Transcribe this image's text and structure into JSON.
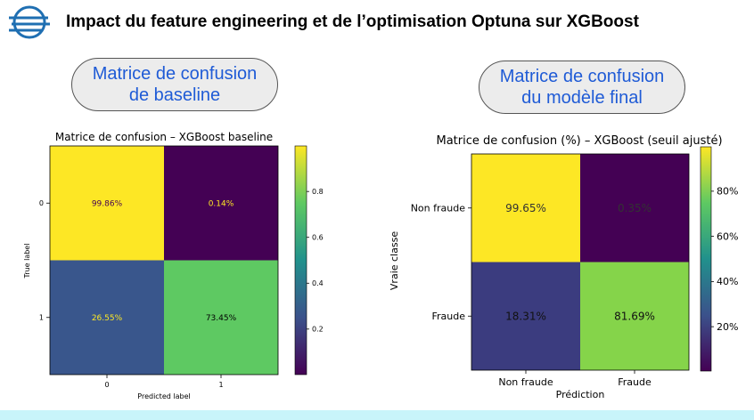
{
  "header": {
    "title": "Impact du feature engineering et de l’optimisation Optuna sur XGBoost"
  },
  "panels": {
    "left_pill": {
      "line1": "Matrice de confusion",
      "line2": "de baseline"
    },
    "right_pill": {
      "line1": "Matrice de confusion",
      "line2": "du modèle final"
    }
  },
  "chart_data": [
    {
      "type": "heatmap",
      "title": "Matrice de confusion – XGBoost baseline",
      "xlabel": "Predicted label",
      "ylabel": "True label",
      "x_tick_labels": [
        "0",
        "1"
      ],
      "y_tick_labels": [
        "0",
        "1"
      ],
      "values": [
        [
          0.9986,
          0.0014
        ],
        [
          0.2655,
          0.7345
        ]
      ],
      "cell_labels": [
        [
          "99.86%",
          "0.14%"
        ],
        [
          "26.55%",
          "73.45%"
        ]
      ],
      "colormap": "viridis",
      "colorbar_ticks": [
        0.2,
        0.4,
        0.6,
        0.8
      ],
      "colorbar_tick_labels": [
        "0.2",
        "0.4",
        "0.6",
        "0.8"
      ],
      "colors": {
        "high": "#fde725",
        "low": "#440154",
        "mid_blue": "#39568c",
        "mid_green": "#5ec962"
      }
    },
    {
      "type": "heatmap",
      "title": "Matrice de confusion (%) – XGBoost (seuil ajusté)",
      "xlabel": "Prédiction",
      "ylabel": "Vraie classe",
      "x_tick_labels": [
        "Non fraude",
        "Fraude"
      ],
      "y_tick_labels": [
        "Non fraude",
        "Fraude"
      ],
      "values": [
        [
          99.65,
          0.35
        ],
        [
          18.31,
          81.69
        ]
      ],
      "cell_labels": [
        [
          "99.65%",
          "0.35%"
        ],
        [
          "18.31%",
          "81.69%"
        ]
      ],
      "colormap": "viridis",
      "colorbar_ticks": [
        20,
        40,
        60,
        80
      ],
      "colorbar_tick_labels": [
        "20%",
        "40%",
        "60%",
        "80%"
      ],
      "colors": {
        "high": "#fde725",
        "low": "#440154",
        "mid_blue": "#3b3c7f",
        "mid_green": "#85d44a"
      }
    }
  ]
}
